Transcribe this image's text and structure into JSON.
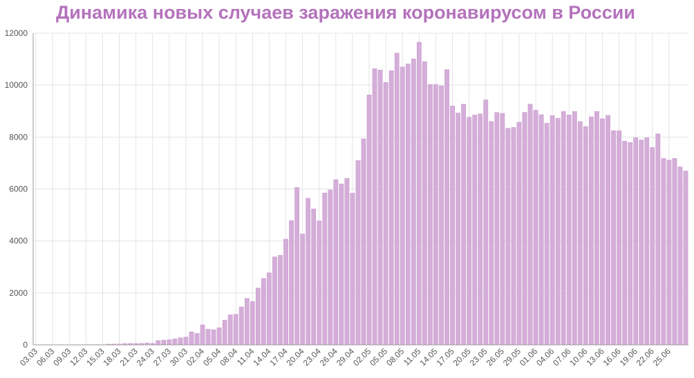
{
  "title": "Динамика новых случаев заражения коронавирусом в России",
  "colors": {
    "title": "#b472bc",
    "bar": "#d4aed8",
    "bar_stroke": "#c797cd",
    "grid": "#e4e4e4",
    "axis": "#999999"
  },
  "chart_data": {
    "type": "bar",
    "title": "Динамика новых случаев заражения коронавирусом в России",
    "xlabel": "",
    "ylabel": "",
    "ylim": [
      0,
      12000
    ],
    "yticks": [
      0,
      2000,
      4000,
      6000,
      8000,
      10000,
      12000
    ],
    "grid": true,
    "legend": "none",
    "categories": [
      "03.03",
      "04.03",
      "05.03",
      "06.03",
      "07.03",
      "08.03",
      "09.03",
      "10.03",
      "11.03",
      "12.03",
      "13.03",
      "14.03",
      "15.03",
      "16.03",
      "17.03",
      "18.03",
      "19.03",
      "20.03",
      "21.03",
      "22.03",
      "23.03",
      "24.03",
      "25.03",
      "26.03",
      "27.03",
      "28.03",
      "29.03",
      "30.03",
      "31.03",
      "01.04",
      "02.04",
      "03.04",
      "04.04",
      "05.04",
      "06.04",
      "07.04",
      "08.04",
      "09.04",
      "10.04",
      "11.04",
      "12.04",
      "13.04",
      "14.04",
      "15.04",
      "16.04",
      "17.04",
      "18.04",
      "19.04",
      "20.04",
      "21.04",
      "22.04",
      "23.04",
      "24.04",
      "25.04",
      "26.04",
      "27.04",
      "28.04",
      "29.04",
      "30.04",
      "01.05",
      "02.05",
      "03.05",
      "04.05",
      "05.05",
      "06.05",
      "07.05",
      "08.05",
      "09.05",
      "10.05",
      "11.05",
      "12.05",
      "13.05",
      "14.05",
      "15.05",
      "16.05",
      "17.05",
      "18.05",
      "19.05",
      "20.05",
      "21.05",
      "22.05",
      "23.05",
      "24.05",
      "25.05",
      "26.05",
      "27.05",
      "28.05",
      "29.05",
      "30.05",
      "31.05",
      "01.06",
      "02.06",
      "03.06",
      "04.06",
      "05.06",
      "06.06",
      "07.06",
      "08.06",
      "09.06",
      "10.06",
      "11.06",
      "12.06",
      "13.06",
      "14.06",
      "15.06",
      "16.06",
      "17.06",
      "18.06",
      "19.06",
      "20.06",
      "21.06",
      "22.06",
      "23.06",
      "24.06",
      "25.06",
      "26.06",
      "27.06",
      "28.06"
    ],
    "tick_labels": [
      "03.03",
      "06.03",
      "09.03",
      "12.03",
      "15.03",
      "18.03",
      "21.03",
      "24.03",
      "27.03",
      "30.03",
      "02.04",
      "05.04",
      "08.04",
      "11.04",
      "14.04",
      "17.04",
      "20.04",
      "23.04",
      "26.04",
      "29.04",
      "02.05",
      "05.05",
      "08.05",
      "11.05",
      "14.05",
      "17.05",
      "20.05",
      "23.05",
      "26.05",
      "29.05",
      "01.06",
      "04.06",
      "07.06",
      "10.06",
      "13.06",
      "16.06",
      "19.06",
      "22.06",
      "25.06"
    ],
    "values": [
      0,
      1,
      0,
      1,
      1,
      0,
      1,
      3,
      2,
      8,
      6,
      11,
      4,
      27,
      30,
      33,
      52,
      54,
      53,
      57,
      71,
      57,
      163,
      182,
      196,
      228,
      270,
      302,
      500,
      440,
      771,
      601,
      582,
      658,
      954,
      1154,
      1175,
      1459,
      1786,
      1667,
      2186,
      2558,
      2774,
      3388,
      3448,
      4070,
      4785,
      6060,
      4268,
      5642,
      5236,
      4774,
      5849,
      5966,
      6361,
      6198,
      6411,
      5841,
      7099,
      7933,
      9623,
      10633,
      10581,
      10102,
      10559,
      11231,
      10699,
      10817,
      11012,
      11656,
      10899,
      10028,
      10028,
      9974,
      10598,
      9200,
      8926,
      9263,
      8764,
      8849,
      8894,
      9434,
      8599,
      8946,
      8915,
      8338,
      8371,
      8572,
      8952,
      9268,
      9035,
      8863,
      8536,
      8831,
      8726,
      8985,
      8855,
      8984,
      8595,
      8404,
      8779,
      8987,
      8706,
      8835,
      8248,
      8246,
      7843,
      7790,
      7972,
      7889,
      7972,
      7600,
      8126,
      7176,
      7113,
      7176,
      6852,
      6693
    ]
  }
}
